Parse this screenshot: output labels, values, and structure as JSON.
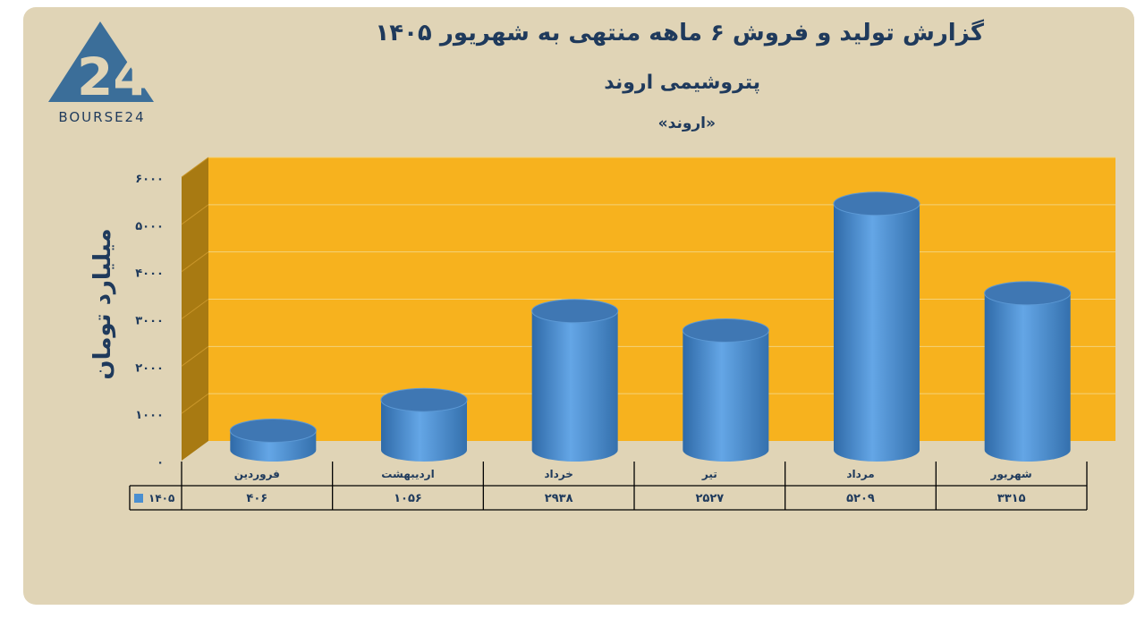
{
  "logo": {
    "text": "BOURSE24",
    "mark": "24"
  },
  "header": {
    "title": "گزارش  تولید و فروش ۶ ماهه منتهی به شهریور ۱۴۰۵",
    "subtitle": "پتروشیمی اروند",
    "symbol": "«اروند»"
  },
  "colors": {
    "background": "#e0d4b6",
    "plot": "#f7b21e",
    "wall": "#a87a12",
    "bar": "#4a8fd0",
    "text": "#1f3a5c"
  },
  "chart_data": {
    "type": "bar",
    "style": "3d-cylinder",
    "title": "",
    "ylabel": "میلیارد تومان",
    "ylim": [
      0,
      6000
    ],
    "yticks": [
      "۰",
      "۱۰۰۰",
      "۲۰۰۰",
      "۳۰۰۰",
      "۴۰۰۰",
      "۵۰۰۰",
      "۶۰۰۰"
    ],
    "ytick_values": [
      0,
      1000,
      2000,
      3000,
      4000,
      5000,
      6000
    ],
    "grid": true,
    "categories": [
      "فروردین",
      "اردیبهشت",
      "خرداد",
      "تیر",
      "مرداد",
      "شهریور"
    ],
    "series": [
      {
        "name": "۱۴۰۵",
        "values": [
          406,
          1056,
          2938,
          2527,
          5209,
          3315
        ],
        "labels": [
          "۴۰۶",
          "۱۰۵۶",
          "۲۹۳۸",
          "۲۵۲۷",
          "۵۲۰۹",
          "۳۳۱۵"
        ]
      }
    ],
    "legend": "data-table"
  }
}
